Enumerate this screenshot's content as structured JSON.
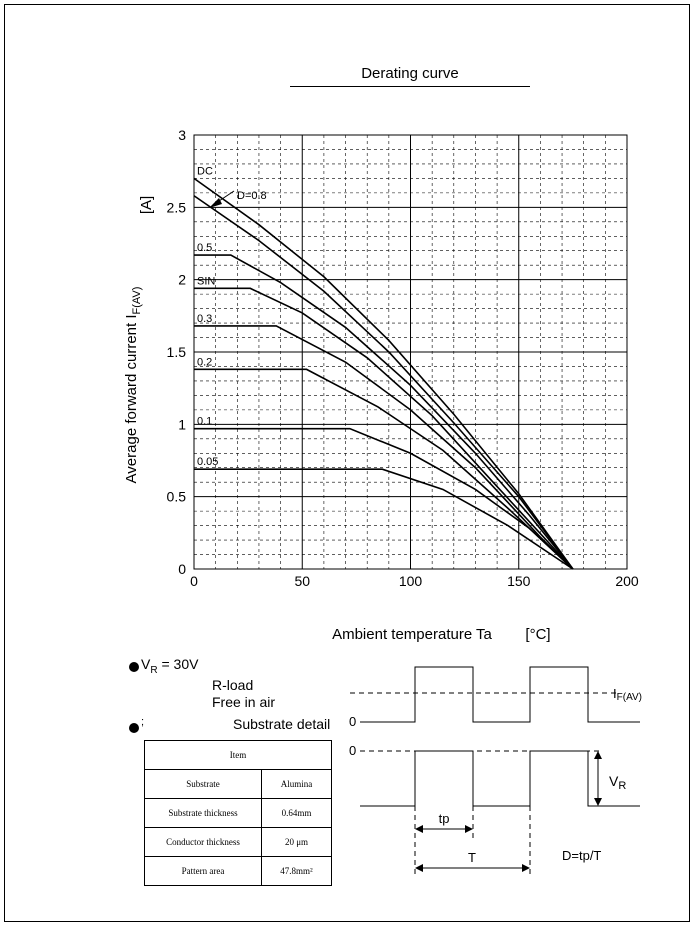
{
  "header": {
    "title": "Derating curve"
  },
  "chart_data": {
    "type": "line",
    "title": "Derating curve",
    "xlabel": "Ambient temperature  Ta",
    "xunit": "[°C]",
    "ylabel": "Average forward current  I",
    "ylabel_sub": "F(AV)",
    "yunit": "[A]",
    "xlim": [
      0,
      200
    ],
    "ylim": [
      0,
      3
    ],
    "xticks": [
      "0",
      "50",
      "100",
      "150",
      "200"
    ],
    "yticks": [
      "0",
      "0.5",
      "1",
      "1.5",
      "2",
      "2.5",
      "3"
    ],
    "grid": true,
    "series": [
      {
        "name": "DC",
        "points": [
          [
            0,
            2.7
          ],
          [
            30,
            2.38
          ],
          [
            60,
            2.02
          ],
          [
            90,
            1.58
          ],
          [
            120,
            1.07
          ],
          [
            150,
            0.52
          ],
          [
            175,
            0
          ]
        ]
      },
      {
        "name": "D=0.8",
        "points": [
          [
            0,
            2.58
          ],
          [
            30,
            2.27
          ],
          [
            60,
            1.92
          ],
          [
            90,
            1.5
          ],
          [
            120,
            1.01
          ],
          [
            150,
            0.5
          ],
          [
            175,
            0
          ]
        ]
      },
      {
        "name": "0.5",
        "points": [
          [
            0,
            2.17
          ],
          [
            17,
            2.17
          ],
          [
            40,
            1.98
          ],
          [
            70,
            1.67
          ],
          [
            100,
            1.27
          ],
          [
            130,
            0.8
          ],
          [
            155,
            0.37
          ],
          [
            175,
            0
          ]
        ]
      },
      {
        "name": "SIN",
        "points": [
          [
            0,
            1.94
          ],
          [
            26,
            1.94
          ],
          [
            50,
            1.77
          ],
          [
            80,
            1.46
          ],
          [
            110,
            1.06
          ],
          [
            140,
            0.57
          ],
          [
            175,
            0
          ]
        ]
      },
      {
        "name": "0.3",
        "points": [
          [
            0,
            1.68
          ],
          [
            38,
            1.68
          ],
          [
            70,
            1.43
          ],
          [
            100,
            1.1
          ],
          [
            130,
            0.7
          ],
          [
            160,
            0.22
          ],
          [
            175,
            0
          ]
        ]
      },
      {
        "name": "0.2",
        "points": [
          [
            0,
            1.38
          ],
          [
            52,
            1.38
          ],
          [
            85,
            1.12
          ],
          [
            115,
            0.82
          ],
          [
            145,
            0.42
          ],
          [
            175,
            0
          ]
        ]
      },
      {
        "name": "0.1",
        "points": [
          [
            0,
            0.97
          ],
          [
            72,
            0.97
          ],
          [
            100,
            0.8
          ],
          [
            130,
            0.55
          ],
          [
            155,
            0.28
          ],
          [
            175,
            0
          ]
        ]
      },
      {
        "name": "0.05",
        "points": [
          [
            0,
            0.69
          ],
          [
            87,
            0.69
          ],
          [
            115,
            0.55
          ],
          [
            145,
            0.3
          ],
          [
            175,
            0
          ]
        ]
      }
    ]
  },
  "conditions": {
    "vr_label": "V",
    "vr_sub": "R",
    "vr_value": " = 30V",
    "load": "R-load",
    "air": "Free in air",
    "substrate_title": "Substrate detail",
    "bullet2_mark": ";"
  },
  "substrate_table": {
    "header": "Item",
    "rows": [
      [
        "Substrate",
        "Alumina"
      ],
      [
        "Substrate thickness",
        "0.64mm"
      ],
      [
        "Conductor thickness",
        "20 μm"
      ],
      [
        "Pattern area",
        "47.8mm²"
      ]
    ]
  },
  "waveform": {
    "zero_top": "0",
    "zero_bottom": "0",
    "if_label": "I",
    "if_sub": "F(AV)",
    "vr_label": "V",
    "vr_sub": "R",
    "tp_label": "tp",
    "t_label": "T",
    "duty_formula": "D=tp/T"
  }
}
